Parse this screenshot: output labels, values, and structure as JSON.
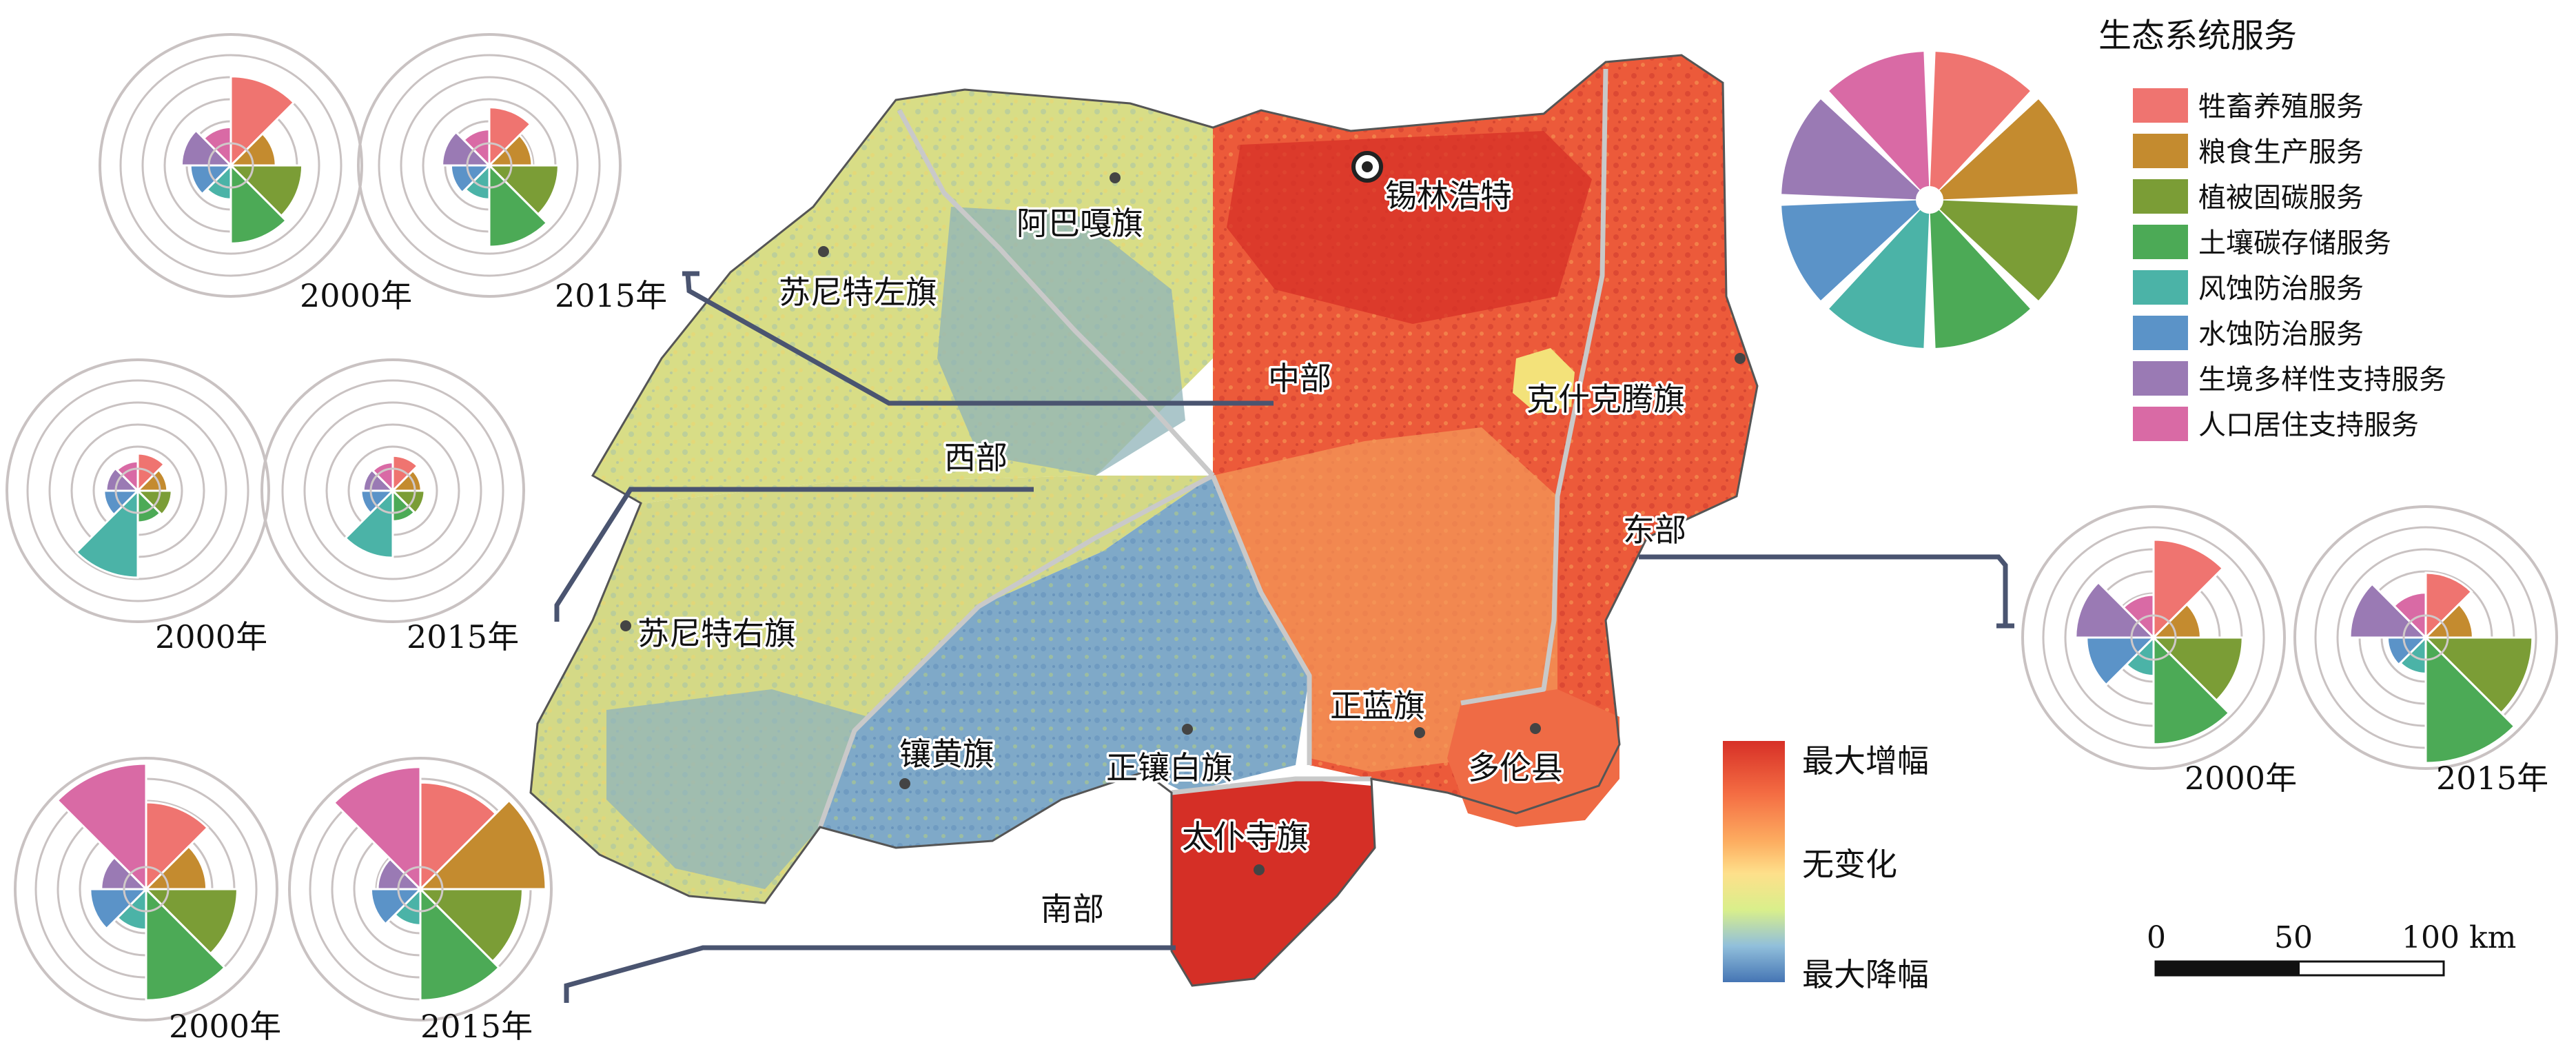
{
  "legend": {
    "title": "生态系统服务",
    "items": [
      {
        "label": "牲畜养殖服务",
        "color": "#ef7470"
      },
      {
        "label": "粮食生产服务",
        "color": "#c48b2f"
      },
      {
        "label": "植被固碳服务",
        "color": "#7b9d36"
      },
      {
        "label": "土壤碳存储服务",
        "color": "#4caa56"
      },
      {
        "label": "风蚀防治服务",
        "color": "#4bb3a7"
      },
      {
        "label": "水蚀防治服务",
        "color": "#5b93c8"
      },
      {
        "label": "生境多样性支持服务",
        "color": "#9a7ab4"
      },
      {
        "label": "人口居住支持服务",
        "color": "#d96aa5"
      }
    ]
  },
  "colorbar": {
    "max_label": "最大增幅",
    "mid_label": "无变化",
    "min_label": "最大降幅",
    "colors": [
      "#d73027",
      "#fc8d59",
      "#fee08b",
      "#e6f598",
      "#91bfdb",
      "#4575b4"
    ]
  },
  "scalebar": {
    "ticks": [
      "0",
      "50",
      "100 km"
    ]
  },
  "places": {
    "xilinhot": "锡林浩特",
    "abaga": "阿巴嘎旗",
    "sunite_left": "苏尼特左旗",
    "zhongbu": "中部",
    "xibu": "西部",
    "dongbu": "东部",
    "nanbu": "南部",
    "keshiketeng": "克什克腾旗",
    "sunite_right": "苏尼特右旗",
    "zhenglan": "正蓝旗",
    "duolun": "多伦县",
    "xianghuang": "镶黄旗",
    "zhengxiangbai": "正镶白旗",
    "taipusi": "太仆寺旗"
  },
  "roses": {
    "central": {
      "y2000": {
        "label": "2000年",
        "values": [
          0.62,
          0.22,
          0.46,
          0.52,
          0.12,
          0.18,
          0.26,
          0.16
        ]
      },
      "y2015": {
        "label": "2015年",
        "values": [
          0.34,
          0.2,
          0.44,
          0.55,
          0.12,
          0.16,
          0.24,
          0.14
        ]
      }
    },
    "west": {
      "y2000": {
        "label": "2000年",
        "values": [
          0.15,
          0.08,
          0.12,
          0.1,
          0.6,
          0.12,
          0.1,
          0.08
        ]
      },
      "y2015": {
        "label": "2015年",
        "values": [
          0.13,
          0.07,
          0.1,
          0.09,
          0.42,
          0.1,
          0.08,
          0.07
        ]
      }
    },
    "east": {
      "y2000": {
        "label": "2000年",
        "values": [
          0.7,
          0.24,
          0.62,
          0.78,
          0.16,
          0.42,
          0.52,
          0.2
        ]
      },
      "y2015": {
        "label": "2015年",
        "values": [
          0.4,
          0.24,
          0.78,
          0.95,
          0.14,
          0.16,
          0.5,
          0.22
        ]
      }
    },
    "south": {
      "y2000": {
        "label": "2000年",
        "values": [
          0.6,
          0.36,
          0.64,
          0.82,
          0.18,
          0.32,
          0.22,
          0.95
        ]
      },
      "y2015": {
        "label": "2015年",
        "values": [
          0.78,
          0.95,
          0.74,
          0.82,
          0.14,
          0.26,
          0.2,
          0.92
        ]
      }
    }
  }
}
